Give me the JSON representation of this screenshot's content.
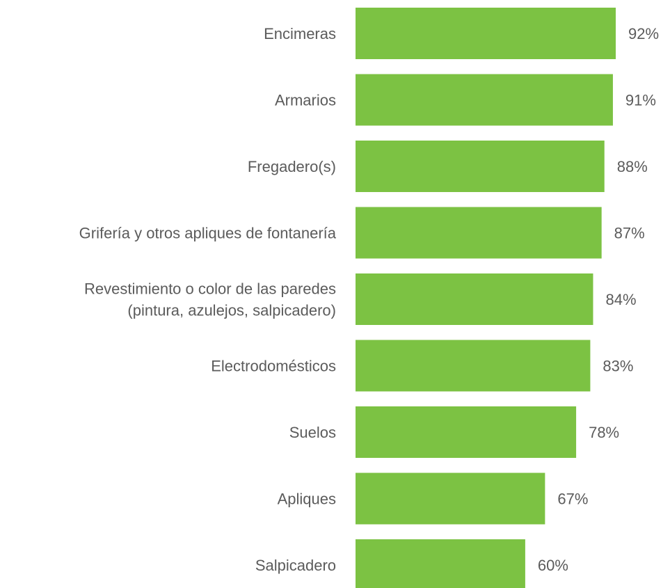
{
  "chart_data": {
    "type": "bar",
    "orientation": "horizontal",
    "categories": [
      [
        "Encimeras"
      ],
      [
        "Armarios"
      ],
      [
        "Fregadero(s)"
      ],
      [
        "Grifería y otros apliques de fontanería"
      ],
      [
        "Revestimiento o color de las paredes",
        "(pintura, azulejos, salpicadero)"
      ],
      [
        "Electrodomésticos"
      ],
      [
        "Suelos"
      ],
      [
        "Apliques"
      ],
      [
        "Salpicadero"
      ]
    ],
    "values": [
      92,
      91,
      88,
      87,
      84,
      83,
      78,
      67,
      60
    ],
    "value_labels": [
      "92%",
      "91%",
      "88%",
      "87%",
      "84%",
      "83%",
      "78%",
      "67%",
      "60%"
    ],
    "title": "",
    "xlabel": "",
    "ylabel": "",
    "xlim": [
      0,
      100
    ],
    "grid": false,
    "legend": "none",
    "bar_color": "#7cc243",
    "text_color": "#5b5b5b"
  }
}
